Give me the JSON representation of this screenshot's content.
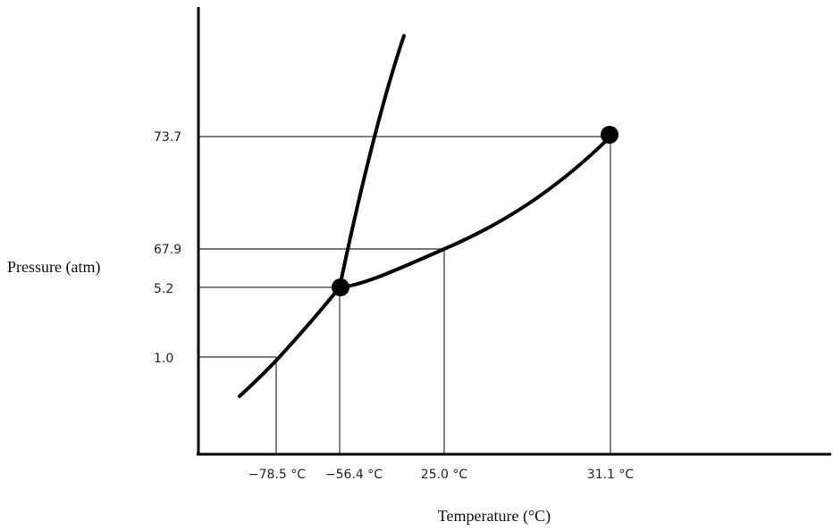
{
  "chart_data": {
    "type": "line",
    "title": "",
    "xlabel": "Temperature (°C)",
    "ylabel": "Pressure (atm)",
    "y_ticks": [
      "73.7",
      "67.9",
      "5.2",
      "1.0"
    ],
    "x_ticks": [
      "−78.5 °C",
      "−56.4 °C",
      "25.0 °C",
      "31.1 °C"
    ],
    "series": [
      {
        "points": [
          [
            "−78.5 °C",
            "1.0"
          ],
          [
            "−56.4 °C",
            "5.2"
          ]
        ]
      },
      {
        "points": [
          [
            "−56.4 °C",
            "5.2"
          ],
          [
            "25.0 °C",
            "67.9"
          ],
          [
            "31.1 °C",
            "73.7"
          ]
        ]
      },
      {
        "points": [
          [
            "−56.4 °C",
            "5.2"
          ]
        ]
      }
    ],
    "marked_points": [
      {
        "x": "−56.4 °C",
        "y": "5.2"
      },
      {
        "x": "31.1 °C",
        "y": "73.7"
      }
    ],
    "grid": false
  }
}
